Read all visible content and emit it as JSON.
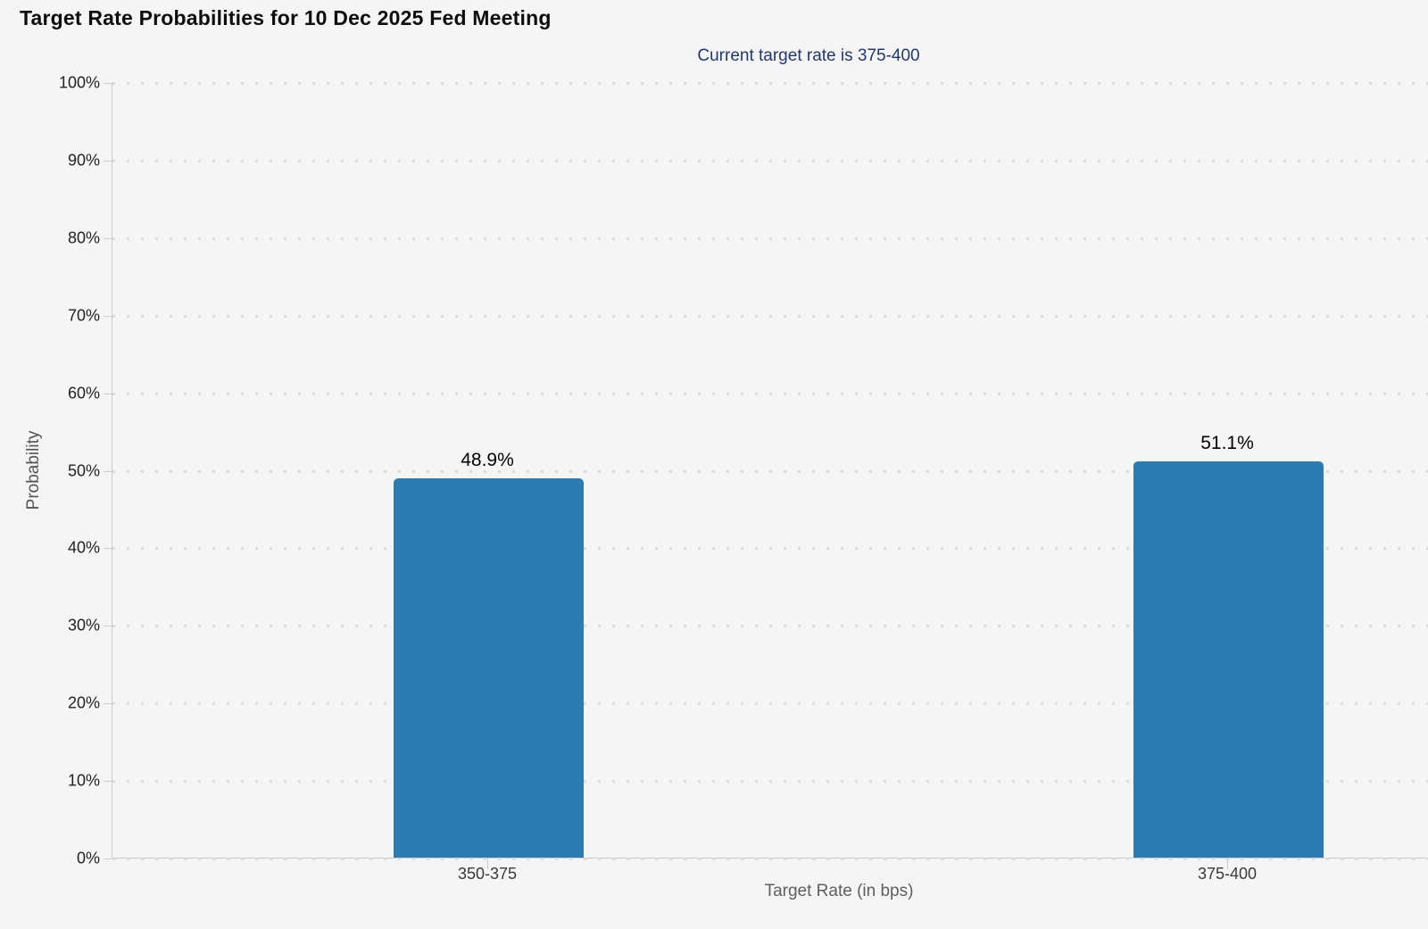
{
  "chart_data": {
    "type": "bar",
    "title": "Target Rate Probabilities for 10 Dec 2025 Fed Meeting",
    "subtitle": "Current target rate is 375-400",
    "categories": [
      "350-375",
      "375-400"
    ],
    "values": [
      48.9,
      51.1
    ],
    "value_labels": [
      "48.9%",
      "51.1%"
    ],
    "xlabel": "Target Rate (in bps)",
    "ylabel": "Probability",
    "ylim": [
      0,
      100
    ],
    "ytick_step": 10,
    "ytick_labels": [
      "0%",
      "10%",
      "20%",
      "30%",
      "40%",
      "50%",
      "60%",
      "70%",
      "80%",
      "90%",
      "100%"
    ],
    "grid": "horizontal dotted",
    "legend": "none"
  },
  "colors": {
    "background": "#f5f5f6",
    "bar": "#2c7cb4",
    "subtitle_text": "#21376f",
    "axis_line": "#c9c9c9",
    "grid_dot": "#dadada",
    "tick_text": "#222222",
    "axis_title_text": "#5e5e5e"
  }
}
